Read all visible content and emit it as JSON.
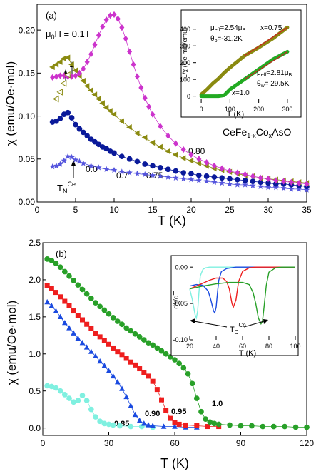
{
  "chart_data": [
    {
      "panel_label": "(a)",
      "type": "scatter",
      "xlabel": "T (K)",
      "ylabel": "χ (emu/Oe·mol)",
      "xlim": [
        0,
        35
      ],
      "ylim": [
        0,
        0.23
      ],
      "xticks": [
        "0",
        "5",
        "10",
        "15",
        "20",
        "25",
        "30",
        "35"
      ],
      "yticks": [
        "0.00",
        "0.05",
        "0.10",
        "0.15",
        "0.20"
      ],
      "field_label": "μ0H = 0.1T",
      "compound_label": "CeFe1-xCoxAsO",
      "tn_label": "TNCe",
      "series": [
        {
          "name": "0.0",
          "color": "#5555dd",
          "marker": "star",
          "x": [
            2,
            2.5,
            3,
            3.5,
            4,
            4.5,
            5,
            5.5,
            6,
            7,
            8,
            9,
            10,
            11,
            12,
            13,
            14,
            15,
            16,
            17,
            18,
            19,
            20,
            21,
            22,
            23,
            24,
            25,
            26,
            27,
            28,
            29,
            30,
            31,
            32,
            33,
            34,
            35
          ],
          "y": [
            0.041,
            0.042,
            0.044,
            0.048,
            0.053,
            0.052,
            0.049,
            0.047,
            0.045,
            0.042,
            0.04,
            0.038,
            0.037,
            0.035,
            0.034,
            0.033,
            0.032,
            0.031,
            0.03,
            0.029,
            0.028,
            0.027,
            0.026,
            0.025,
            0.024,
            0.023,
            0.022,
            0.021,
            0.02,
            0.02,
            0.019,
            0.018,
            0.017,
            0.017,
            0.016,
            0.015,
            0.015,
            0.014
          ]
        },
        {
          "name": "0.7",
          "color": "#0a1a9a",
          "marker": "circle",
          "x": [
            2,
            2.5,
            3,
            3.5,
            4,
            4.5,
            5,
            5.5,
            6,
            6.5,
            7,
            7.5,
            8,
            8.5,
            9,
            9.5,
            10,
            11,
            12,
            13,
            14,
            15,
            16,
            17,
            18,
            19,
            20,
            21,
            22,
            23,
            24,
            25,
            26,
            27,
            28,
            29,
            30,
            31,
            32,
            33,
            34,
            35
          ],
          "y": [
            0.093,
            0.094,
            0.097,
            0.102,
            0.104,
            0.098,
            0.09,
            0.085,
            0.081,
            0.077,
            0.073,
            0.07,
            0.067,
            0.064,
            0.062,
            0.059,
            0.057,
            0.053,
            0.05,
            0.047,
            0.044,
            0.042,
            0.04,
            0.038,
            0.036,
            0.034,
            0.033,
            0.031,
            0.03,
            0.029,
            0.028,
            0.027,
            0.026,
            0.025,
            0.024,
            0.023,
            0.022,
            0.021,
            0.021,
            0.02,
            0.019,
            0.018
          ]
        },
        {
          "name": "0.75",
          "color": "#8a8a10",
          "marker": "triangle-left",
          "x": [
            2,
            2.5,
            3,
            3.5,
            4,
            4.5,
            5,
            5.5,
            6,
            6.5,
            7,
            7.5,
            8,
            8.5,
            9,
            9.5,
            10,
            11,
            12,
            13,
            14,
            15,
            16,
            17,
            18,
            19,
            20,
            21,
            22,
            23,
            24,
            25,
            26,
            27,
            28,
            29,
            30,
            31,
            32,
            33,
            34,
            35
          ],
          "y": [
            0.157,
            0.16,
            0.163,
            0.167,
            0.168,
            0.16,
            0.153,
            0.147,
            0.141,
            0.135,
            0.13,
            0.125,
            0.12,
            0.115,
            0.11,
            0.106,
            0.102,
            0.094,
            0.087,
            0.08,
            0.075,
            0.069,
            0.064,
            0.059,
            0.055,
            0.051,
            0.048,
            0.045,
            0.042,
            0.039,
            0.037,
            0.035,
            0.033,
            0.031,
            0.03,
            0.028,
            0.027,
            0.026,
            0.025,
            0.024,
            0.023,
            0.022
          ]
        },
        {
          "name": "0.80",
          "color": "#cc33cc",
          "marker": "diamond",
          "x": [
            2,
            2.5,
            3,
            3.5,
            4,
            4.5,
            5,
            5.5,
            6,
            6.5,
            7,
            7.5,
            8,
            8.5,
            9,
            9.5,
            10,
            10.5,
            11,
            11.5,
            12,
            12.5,
            13,
            13.5,
            14,
            14.5,
            15,
            16,
            17,
            18,
            19,
            20,
            21,
            22,
            23,
            24,
            25,
            26,
            27,
            28,
            29,
            30,
            31,
            32,
            33,
            34,
            35
          ],
          "y": [
            0.145,
            0.146,
            0.147,
            0.147,
            0.146,
            0.146,
            0.147,
            0.15,
            0.155,
            0.163,
            0.172,
            0.183,
            0.194,
            0.204,
            0.212,
            0.217,
            0.218,
            0.213,
            0.203,
            0.19,
            0.175,
            0.16,
            0.146,
            0.133,
            0.121,
            0.111,
            0.102,
            0.088,
            0.077,
            0.068,
            0.061,
            0.055,
            0.05,
            0.046,
            0.042,
            0.039,
            0.036,
            0.034,
            0.032,
            0.03,
            0.028,
            0.027,
            0.025,
            0.024,
            0.023,
            0.022,
            0.021
          ]
        }
      ],
      "zfc_open_series_x0_75": {
        "x": [
          2.5,
          3,
          3.5,
          4
        ],
        "y": [
          0.12,
          0.128,
          0.138,
          0.148
        ]
      },
      "inset": {
        "xlabel": "T (K)",
        "ylabel": "1/χ (Oe·mol/emu)",
        "xlim": [
          -30,
          330
        ],
        "ylim": [
          -40,
          480
        ],
        "xticks": [
          "0",
          "100",
          "200",
          "300"
        ],
        "yticks": [
          "0",
          "100",
          "200",
          "300",
          "400"
        ],
        "ann_top": [
          "μeff=2.54μB",
          "θp=-31.2K",
          "x=0.75"
        ],
        "ann_bot": [
          "μeff=2.81μB",
          "θw=29.5K",
          "x=1.0"
        ],
        "series": [
          {
            "name": "x=0.75",
            "color": "#8a8a10",
            "x": [
              0,
              20,
              40,
              60,
              80,
              100,
              150,
              200,
              250,
              300
            ],
            "y": [
              10,
              40,
              75,
              105,
              140,
              170,
              240,
              290,
              345,
              410
            ]
          },
          {
            "name": "x=1.0",
            "color": "#22aa22",
            "x": [
              0,
              20,
              40,
              60,
              80,
              100,
              150,
              200,
              250,
              300
            ],
            "y": [
              0,
              0,
              0,
              0,
              5,
              40,
              100,
              160,
              220,
              265
            ]
          }
        ]
      }
    },
    {
      "panel_label": "(b)",
      "type": "scatter",
      "xlabel": "T (K)",
      "ylabel": "χ (emu/Oe·mol)",
      "xlim": [
        0,
        120
      ],
      "ylim": [
        -0.1,
        2.5
      ],
      "xticks": [
        "0",
        "30",
        "60",
        "90",
        "120"
      ],
      "yticks": [
        "0.0",
        "0.5",
        "1.0",
        "1.5",
        "2.0",
        "2.5"
      ],
      "series": [
        {
          "name": "0.85",
          "color": "#7ff0e0",
          "marker": "circle",
          "x": [
            2,
            4,
            6,
            8,
            10,
            12,
            14,
            16,
            18,
            20,
            22,
            24,
            26,
            28,
            30,
            32,
            35,
            40,
            45,
            50
          ],
          "y": [
            0.57,
            0.56,
            0.54,
            0.5,
            0.45,
            0.4,
            0.35,
            0.37,
            0.44,
            0.37,
            0.25,
            0.15,
            0.09,
            0.06,
            0.05,
            0.04,
            0.03,
            0.02,
            0.02,
            0.01
          ]
        },
        {
          "name": "0.90",
          "color": "#1a4ae0",
          "marker": "triangle-up",
          "x": [
            2,
            4,
            6,
            8,
            10,
            12,
            14,
            16,
            18,
            20,
            22,
            24,
            26,
            28,
            30,
            32,
            34,
            36,
            38,
            40,
            42,
            44,
            46,
            48,
            50,
            55,
            60,
            65,
            70
          ],
          "y": [
            1.7,
            1.65,
            1.58,
            1.5,
            1.42,
            1.35,
            1.28,
            1.21,
            1.15,
            1.09,
            1.03,
            0.97,
            0.9,
            0.84,
            0.77,
            0.7,
            0.62,
            0.53,
            0.42,
            0.3,
            0.18,
            0.1,
            0.06,
            0.04,
            0.03,
            0.02,
            0.02,
            0.01,
            0.01
          ]
        },
        {
          "name": "0.95",
          "color": "#ee1e1e",
          "marker": "square",
          "x": [
            2,
            4,
            6,
            8,
            10,
            12,
            14,
            16,
            18,
            20,
            22,
            24,
            26,
            28,
            30,
            32,
            34,
            36,
            38,
            40,
            42,
            44,
            46,
            48,
            50,
            52,
            54,
            56,
            58,
            60,
            62,
            65,
            70,
            75,
            80
          ],
          "y": [
            1.92,
            1.88,
            1.83,
            1.77,
            1.71,
            1.65,
            1.58,
            1.52,
            1.46,
            1.4,
            1.34,
            1.28,
            1.23,
            1.18,
            1.13,
            1.08,
            1.03,
            0.99,
            0.94,
            0.89,
            0.85,
            0.8,
            0.75,
            0.7,
            0.63,
            0.52,
            0.38,
            0.24,
            0.13,
            0.07,
            0.05,
            0.04,
            0.03,
            0.02,
            0.02
          ]
        },
        {
          "name": "1.0",
          "color": "#28a028",
          "marker": "circle",
          "x": [
            2,
            4,
            6,
            8,
            10,
            12,
            14,
            16,
            18,
            20,
            22,
            24,
            26,
            28,
            30,
            32,
            34,
            36,
            38,
            40,
            42,
            44,
            46,
            48,
            50,
            52,
            54,
            56,
            58,
            60,
            62,
            64,
            66,
            68,
            70,
            72,
            74,
            76,
            78,
            80,
            85,
            90,
            95,
            100,
            105,
            110,
            115,
            120
          ],
          "y": [
            2.28,
            2.26,
            2.22,
            2.17,
            2.11,
            2.05,
            1.99,
            1.93,
            1.87,
            1.81,
            1.75,
            1.69,
            1.64,
            1.59,
            1.54,
            1.49,
            1.44,
            1.4,
            1.35,
            1.31,
            1.27,
            1.23,
            1.19,
            1.15,
            1.12,
            1.08,
            1.04,
            1.0,
            0.96,
            0.92,
            0.87,
            0.81,
            0.73,
            0.6,
            0.4,
            0.22,
            0.12,
            0.08,
            0.06,
            0.05,
            0.04,
            0.03,
            0.03,
            0.02,
            0.02,
            0.02,
            0.01,
            0.01
          ]
        }
      ],
      "inset": {
        "xlabel": "T (K)",
        "ylabel": "dχ/dT",
        "xlim": [
          20,
          100
        ],
        "ylim": [
          -0.1,
          0.01
        ],
        "xticks": [
          "20",
          "40",
          "60",
          "80",
          "100"
        ],
        "yticks": [
          "0.00",
          "-0.05",
          "-0.10"
        ],
        "tc_label": "TCCo",
        "series": [
          {
            "name": "0.85",
            "color": "#7ff0e0",
            "x": [
              20,
              22,
              24,
              25,
              26,
              27,
              28,
              30,
              32,
              35,
              40,
              50,
              60,
              70,
              80,
              90,
              100
            ],
            "y": [
              -0.03,
              -0.045,
              -0.065,
              -0.07,
              -0.06,
              -0.035,
              -0.012,
              -0.003,
              -0.001,
              0,
              0,
              0,
              0,
              0,
              0,
              0,
              0
            ]
          },
          {
            "name": "0.90",
            "color": "#1a4ae0",
            "x": [
              20,
              25,
              30,
              34,
              36,
              38,
              39,
              40,
              41,
              42,
              44,
              48,
              55,
              60,
              70,
              80,
              90,
              100
            ],
            "y": [
              -0.026,
              -0.024,
              -0.025,
              -0.033,
              -0.045,
              -0.06,
              -0.063,
              -0.055,
              -0.035,
              -0.018,
              -0.006,
              -0.002,
              0,
              0,
              0,
              0,
              0,
              0
            ]
          },
          {
            "name": "0.95",
            "color": "#ee1e1e",
            "x": [
              20,
              25,
              30,
              35,
              40,
              45,
              48,
              50,
              52,
              53,
              55,
              57,
              60,
              65,
              70,
              80,
              90,
              100
            ],
            "y": [
              -0.03,
              -0.026,
              -0.022,
              -0.018,
              -0.015,
              -0.015,
              -0.02,
              -0.03,
              -0.05,
              -0.055,
              -0.045,
              -0.02,
              -0.006,
              -0.001,
              0,
              0,
              0,
              0
            ]
          },
          {
            "name": "1.0",
            "color": "#28a028",
            "x": [
              20,
              30,
              40,
              50,
              60,
              65,
              68,
              70,
              72,
              74,
              75,
              76,
              78,
              80,
              85,
              90,
              100
            ],
            "y": [
              -0.03,
              -0.026,
              -0.023,
              -0.021,
              -0.021,
              -0.024,
              -0.035,
              -0.05,
              -0.07,
              -0.078,
              -0.075,
              -0.06,
              -0.025,
              -0.007,
              -0.001,
              0,
              0
            ]
          }
        ]
      }
    }
  ]
}
